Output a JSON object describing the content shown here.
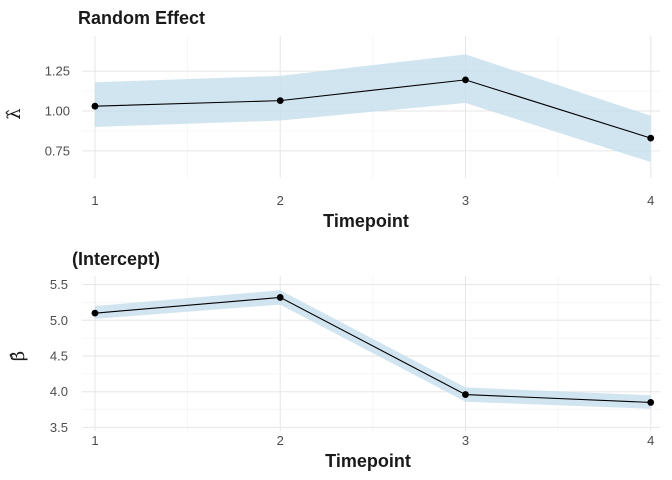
{
  "chart_data": [
    {
      "type": "line",
      "title": "Random Effect",
      "xlabel": "Timepoint",
      "ylabel": "λ̂",
      "x": [
        1,
        2,
        3,
        4
      ],
      "xticks": [
        "1",
        "2",
        "3",
        "4"
      ],
      "xlim": [
        0.93,
        4.05
      ],
      "ylim": [
        0.58,
        1.47
      ],
      "yticks": [
        0.75,
        1.0,
        1.25
      ],
      "ytick_labels": [
        "0.75",
        "1.00",
        "1.25"
      ],
      "series": [
        {
          "values": [
            1.03,
            1.065,
            1.195,
            0.83
          ],
          "lower": [
            0.9,
            0.94,
            1.05,
            0.68
          ],
          "upper": [
            1.18,
            1.22,
            1.355,
            0.97
          ]
        }
      ],
      "ribbon_color": "#c6dfee",
      "line_color": "#000000",
      "grid": true
    },
    {
      "type": "line",
      "title": "(Intercept)",
      "xlabel": "Timepoint",
      "ylabel": "β̂",
      "x": [
        1,
        2,
        3,
        4
      ],
      "xticks": [
        "1",
        "2",
        "3",
        "4"
      ],
      "xlim": [
        0.93,
        4.05
      ],
      "ylim": [
        3.45,
        5.62
      ],
      "yticks": [
        3.5,
        4.0,
        4.5,
        5.0,
        5.5
      ],
      "ytick_labels": [
        "3.5",
        "4.0",
        "4.5",
        "5.0",
        "5.5"
      ],
      "series": [
        {
          "values": [
            5.1,
            5.32,
            3.96,
            3.85
          ],
          "lower": [
            5.02,
            5.22,
            3.86,
            3.76
          ],
          "upper": [
            5.2,
            5.42,
            4.06,
            3.95
          ]
        }
      ],
      "ribbon_color": "#c6dfee",
      "line_color": "#000000",
      "grid": true
    }
  ]
}
